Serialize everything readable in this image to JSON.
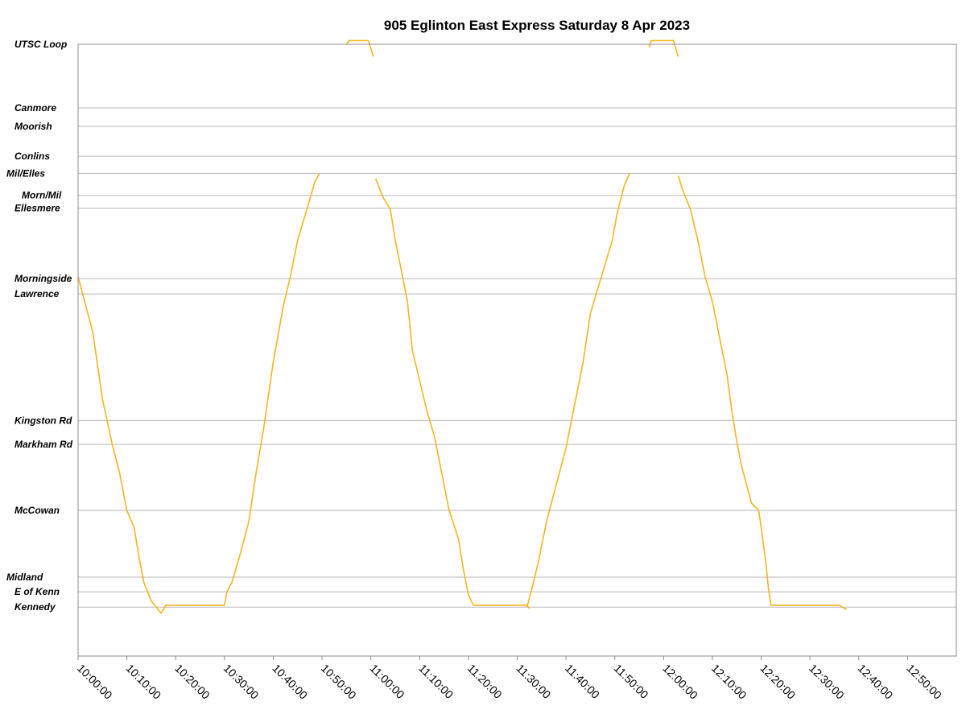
{
  "chart_data": {
    "type": "line",
    "title": "905 Eglinton East Express Saturday 8 Apr 2023",
    "xlabel": "",
    "ylabel": "",
    "x_ticks": [
      "10:00:00",
      "10:10:00",
      "10:20:00",
      "10:30:00",
      "10:40:00",
      "10:50:00",
      "11:00:00",
      "11:10:00",
      "11:20:00",
      "11:30:00",
      "11:40:00",
      "11:50:00",
      "12:00:00",
      "12:10:00",
      "12:20:00",
      "12:30:00",
      "12:40:00",
      "12:50:00"
    ],
    "xlim": [
      "10:00:00",
      "13:00:00"
    ],
    "stops": [
      {
        "name": "UTSC Loop",
        "pos": 100
      },
      {
        "name": "Canmore",
        "pos": 89.6
      },
      {
        "name": "Moorish",
        "pos": 86.6
      },
      {
        "name": "Conlins",
        "pos": 81.7
      },
      {
        "name": "Mil/Elles",
        "pos": 78.9
      },
      {
        "name": "Morn/Mil",
        "pos": 75.3
      },
      {
        "name": "Ellesmere",
        "pos": 73.2
      },
      {
        "name": "Morningside",
        "pos": 61.7
      },
      {
        "name": "Lawrence",
        "pos": 59.2
      },
      {
        "name": "Kingston Rd",
        "pos": 38.5
      },
      {
        "name": "Markham Rd",
        "pos": 34.6
      },
      {
        "name": "McCowan",
        "pos": 23.8
      },
      {
        "name": "Midland",
        "pos": 12.9
      },
      {
        "name": "E of Kenn",
        "pos": 10.5
      },
      {
        "name": "Kennedy",
        "pos": 8
      }
    ],
    "grid": true,
    "legend": "none",
    "colors": {
      "maroon": "#7b0c0c",
      "cyan": "#3fe3e3",
      "purple": "#78237a",
      "magenta": "#e83ee8",
      "gold": "#f2b61f"
    },
    "series": [
      {
        "color": "#f2b61f",
        "points": [
          [
            "10:00:00",
            62
          ],
          [
            "10:01:30",
            57.5
          ],
          [
            "10:03:00",
            53
          ],
          [
            "10:05:00",
            42
          ],
          [
            "10:07:00",
            34.6
          ],
          [
            "10:08:30",
            30
          ],
          [
            "10:10:00",
            23.8
          ],
          [
            "10:11:30",
            21
          ],
          [
            "10:12:30",
            16
          ],
          [
            "10:13:30",
            12
          ],
          [
            "10:15:00",
            9
          ],
          [
            "10:17:00",
            7
          ],
          [
            "10:18:00",
            8.3
          ],
          [
            "10:30:00",
            8.3
          ],
          [
            "10:30:30",
            10.5
          ],
          [
            "10:31:30",
            12
          ],
          [
            "10:33:00",
            16
          ],
          [
            "10:35:00",
            22
          ],
          [
            "10:36:30",
            30
          ],
          [
            "10:38:00",
            37
          ],
          [
            "10:40:00",
            48
          ],
          [
            "10:42:00",
            57
          ],
          [
            "10:43:30",
            62
          ],
          [
            "10:45:00",
            68
          ],
          [
            "10:47:00",
            73.3
          ],
          [
            "10:48:30",
            77.5
          ],
          [
            "10:49:30",
            78.9
          ]
        ]
      },
      {
        "color": "#f2b61f",
        "points": [
          [
            "10:55:00",
            100
          ],
          [
            "10:55:30",
            100.6
          ],
          [
            "10:59:30",
            100.6
          ],
          [
            "11:00:30",
            98
          ]
        ]
      },
      {
        "color": "#f2b61f",
        "points": [
          [
            "11:01:00",
            78
          ],
          [
            "11:02:30",
            75
          ],
          [
            "11:04:00",
            73
          ],
          [
            "11:05:00",
            68
          ],
          [
            "11:06:30",
            62
          ],
          [
            "11:07:30",
            58
          ],
          [
            "11:08:30",
            50
          ],
          [
            "11:10:00",
            45
          ],
          [
            "11:11:30",
            40
          ],
          [
            "11:13:00",
            36
          ],
          [
            "11:14:30",
            30
          ],
          [
            "11:16:00",
            24
          ],
          [
            "11:18:00",
            19
          ],
          [
            "11:19:00",
            14
          ],
          [
            "11:20:00",
            10
          ],
          [
            "11:21:00",
            8.3
          ],
          [
            "11:32:00",
            8.3
          ],
          [
            "11:32:30",
            7.8
          ]
        ]
      },
      {
        "color": "#f2b61f",
        "points": [
          [
            "11:32:00",
            8
          ],
          [
            "11:33:00",
            11
          ],
          [
            "11:34:30",
            16
          ],
          [
            "11:36:00",
            22
          ],
          [
            "11:38:00",
            28
          ],
          [
            "11:40:00",
            34
          ],
          [
            "11:42:00",
            42
          ],
          [
            "11:43:30",
            48
          ],
          [
            "11:45:00",
            56
          ],
          [
            "11:46:30",
            60
          ],
          [
            "11:48:00",
            64
          ],
          [
            "11:49:30",
            68
          ],
          [
            "11:50:30",
            72.5
          ],
          [
            "11:52:00",
            77
          ],
          [
            "11:53:00",
            78.9
          ]
        ]
      },
      {
        "color": "#f2b61f",
        "points": [
          [
            "11:57:00",
            99.5
          ],
          [
            "11:57:30",
            100.6
          ],
          [
            "12:02:00",
            100.6
          ],
          [
            "12:03:00",
            98
          ]
        ]
      },
      {
        "color": "#f2b61f",
        "points": [
          [
            "12:03:00",
            78.5
          ],
          [
            "12:04:00",
            76
          ],
          [
            "12:05:30",
            73
          ],
          [
            "12:07:00",
            68
          ],
          [
            "12:08:30",
            62
          ],
          [
            "12:10:00",
            58
          ],
          [
            "12:11:30",
            52
          ],
          [
            "12:13:00",
            46
          ],
          [
            "12:14:00",
            40
          ],
          [
            "12:15:00",
            35
          ],
          [
            "12:16:00",
            31
          ],
          [
            "12:17:00",
            28
          ],
          [
            "12:18:00",
            25
          ],
          [
            "12:19:30",
            23.8
          ],
          [
            "12:20:00",
            21
          ],
          [
            "12:21:00",
            15
          ],
          [
            "12:21:30",
            11
          ],
          [
            "12:22:00",
            8.3
          ],
          [
            "12:36:00",
            8.3
          ],
          [
            "12:37:30",
            7.6
          ]
        ]
      }
    ]
  }
}
